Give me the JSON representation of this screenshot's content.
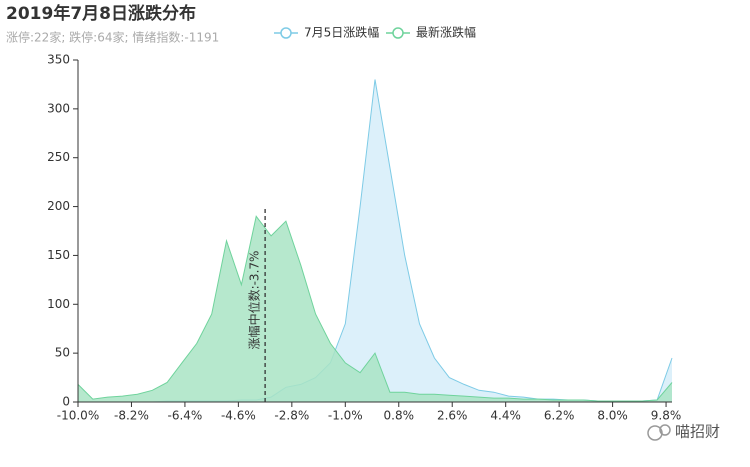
{
  "chart_data": {
    "type": "area",
    "title": "2019年7月8日涨跌分布",
    "subtitle": "涨停:22家; 跌停:64家; 情绪指数:-1191",
    "x": [
      -10,
      -9.5,
      -9,
      -8.5,
      -8,
      -7.5,
      -7,
      -6.5,
      -6,
      -5.5,
      -5,
      -4.5,
      -4,
      -3.5,
      -3,
      -2.5,
      -2,
      -1.5,
      -1,
      -0.5,
      0,
      0.5,
      1,
      1.5,
      2,
      2.5,
      3,
      3.5,
      4,
      4.5,
      5,
      5.5,
      6,
      6.5,
      7,
      7.5,
      8,
      8.5,
      9,
      9.5,
      10
    ],
    "series": [
      {
        "name": "7月5日涨跌幅",
        "color": "#7ecbe6",
        "fill": "#dcf0fa",
        "values": [
          0,
          0,
          0,
          0,
          0,
          0,
          1,
          1,
          1,
          1,
          1,
          2,
          2,
          5,
          15,
          18,
          25,
          40,
          80,
          200,
          330,
          240,
          150,
          80,
          45,
          25,
          18,
          12,
          10,
          6,
          5,
          3,
          3,
          2,
          2,
          1,
          1,
          1,
          1,
          2,
          45
        ]
      },
      {
        "name": "最新涨跌幅",
        "color": "#6fd39c",
        "fill": "#a9e4c4",
        "values": [
          18,
          3,
          5,
          6,
          8,
          12,
          20,
          40,
          60,
          90,
          165,
          120,
          190,
          170,
          185,
          140,
          90,
          60,
          40,
          30,
          50,
          10,
          10,
          8,
          8,
          7,
          6,
          5,
          4,
          4,
          3,
          3,
          2,
          2,
          2,
          1,
          1,
          1,
          1,
          2,
          20
        ]
      }
    ],
    "xlim": [
      -10,
      10
    ],
    "xticks": [
      {
        "value": -10,
        "label": "-10.0%"
      },
      {
        "value": -8.2,
        "label": "-8.2%"
      },
      {
        "value": -6.4,
        "label": "-6.4%"
      },
      {
        "value": -4.6,
        "label": "-4.6%"
      },
      {
        "value": -2.8,
        "label": "-2.8%"
      },
      {
        "value": -1,
        "label": "-1.0%"
      },
      {
        "value": 0.8,
        "label": "0.8%"
      },
      {
        "value": 2.6,
        "label": "2.6%"
      },
      {
        "value": 4.4,
        "label": "4.4%"
      },
      {
        "value": 6.2,
        "label": "6.2%"
      },
      {
        "value": 8,
        "label": "8.0%"
      },
      {
        "value": 9.8,
        "label": "9.8%"
      }
    ],
    "ylim": [
      0,
      350
    ],
    "yticks": [
      0,
      50,
      100,
      150,
      200,
      250,
      300,
      350
    ],
    "mark_line": {
      "value": -3.7,
      "label": "涨幅中位数:-3.7%"
    },
    "watermark": "喵招财"
  }
}
